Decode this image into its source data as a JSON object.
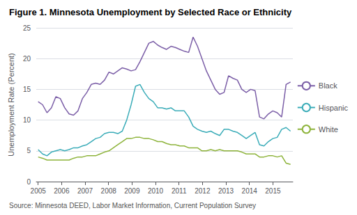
{
  "chart_data": {
    "type": "line",
    "title": "Figure 1. Minnesota Unemployment by Selected Race or Ethnicity",
    "ylabel": "Unemployment Rate (Percent)",
    "source": "Source: Minnesota DEED, Labor Market Information, Current Population Survey",
    "x": [
      2005.0,
      2005.1886,
      2005.3772,
      2005.5658,
      2005.7544,
      2005.943,
      2006.1316,
      2006.3202,
      2006.5088,
      2006.6974,
      2006.886,
      2007.0746,
      2007.2632,
      2007.4518,
      2007.6404,
      2007.8289,
      2008.0175,
      2008.2061,
      2008.3947,
      2008.5833,
      2008.7719,
      2008.9605,
      2009.1491,
      2009.3377,
      2009.5263,
      2009.7149,
      2009.9035,
      2010.0921,
      2010.2807,
      2010.4693,
      2010.6579,
      2010.8465,
      2011.0351,
      2011.2237,
      2011.4123,
      2011.6009,
      2011.7895,
      2011.9781,
      2012.1667,
      2012.3553,
      2012.5439,
      2012.7325,
      2012.9211,
      2013.1096,
      2013.2982,
      2013.4868,
      2013.6754,
      2013.864,
      2014.0526,
      2014.2412,
      2014.4298,
      2014.6184,
      2014.807,
      2014.9956,
      2015.1842,
      2015.3728,
      2015.5614,
      2015.75
    ],
    "series": [
      {
        "name": "Black",
        "color": "#7B5EA7",
        "values": [
          13.0,
          12.5,
          11.2,
          12.0,
          13.8,
          13.5,
          12.0,
          11.0,
          10.8,
          11.5,
          13.5,
          14.5,
          15.8,
          16.0,
          15.8,
          16.5,
          17.8,
          17.5,
          18.0,
          18.5,
          18.3,
          18.0,
          18.2,
          19.5,
          21.0,
          22.5,
          22.8,
          22.2,
          21.8,
          21.5,
          22.0,
          21.8,
          21.5,
          21.2,
          21.0,
          23.5,
          22.0,
          20.0,
          18.0,
          16.5,
          15.0,
          14.2,
          14.5,
          17.2,
          16.8,
          16.5,
          15.0,
          14.5,
          15.0,
          14.8,
          10.5,
          10.2,
          11.0,
          11.5,
          11.2,
          10.5,
          15.8,
          16.2
        ]
      },
      {
        "name": "Hispanic",
        "color": "#3AACB8",
        "values": [
          5.2,
          4.5,
          4.2,
          4.8,
          5.0,
          5.2,
          5.0,
          5.2,
          5.5,
          5.5,
          5.8,
          6.0,
          6.5,
          7.0,
          7.2,
          7.8,
          8.0,
          8.0,
          7.8,
          8.2,
          10.0,
          12.5,
          15.5,
          15.8,
          14.5,
          13.5,
          13.0,
          12.0,
          12.0,
          11.8,
          12.0,
          11.5,
          11.5,
          11.5,
          10.5,
          9.0,
          8.5,
          8.2,
          8.0,
          8.2,
          7.8,
          7.5,
          8.5,
          8.5,
          8.2,
          8.0,
          7.5,
          7.0,
          7.5,
          8.0,
          6.0,
          5.8,
          6.5,
          7.0,
          7.2,
          8.5,
          8.8,
          8.2
        ]
      },
      {
        "name": "White",
        "color": "#8DB33A",
        "values": [
          4.0,
          3.8,
          3.5,
          3.5,
          3.5,
          3.5,
          3.5,
          3.5,
          3.8,
          4.0,
          4.0,
          4.2,
          4.2,
          4.2,
          4.5,
          4.8,
          5.0,
          5.5,
          6.0,
          6.5,
          7.0,
          7.0,
          7.2,
          7.2,
          7.0,
          7.0,
          6.8,
          6.5,
          6.5,
          6.2,
          6.0,
          6.0,
          5.8,
          5.8,
          5.5,
          5.5,
          5.5,
          5.0,
          5.0,
          5.2,
          5.0,
          5.2,
          5.0,
          5.0,
          5.0,
          5.0,
          4.8,
          4.5,
          4.5,
          4.5,
          4.0,
          4.0,
          4.2,
          4.2,
          4.0,
          4.2,
          3.0,
          2.8
        ]
      }
    ],
    "xlim": [
      2004.92,
      2015.85
    ],
    "xticks": [
      2005,
      2006,
      2007,
      2008,
      2009,
      2010,
      2011,
      2012,
      2013,
      2014,
      2015
    ],
    "ylim": [
      0,
      25
    ],
    "yticks": [
      0,
      5,
      10,
      15,
      20,
      25
    ],
    "grid": true,
    "legend": "right"
  }
}
